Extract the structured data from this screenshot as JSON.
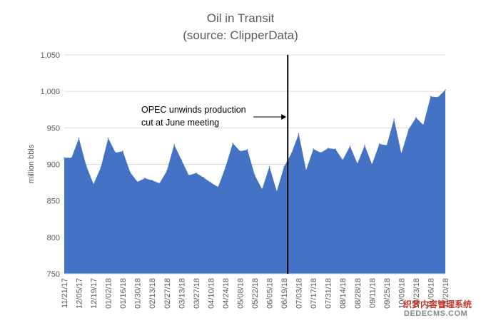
{
  "chart_data": {
    "type": "area",
    "title": "Oil in Transit",
    "subtitle": "(source: ClipperData)",
    "ylabel": "million bbls",
    "xlabel": "",
    "ylim": [
      750,
      1050
    ],
    "yticks": [
      750,
      800,
      850,
      900,
      950,
      1000,
      1050
    ],
    "grid": true,
    "legend": "none",
    "x_ticks": [
      "11/21/17",
      "12/05/17",
      "12/19/17",
      "01/02/18",
      "01/16/18",
      "01/30/18",
      "02/13/18",
      "02/27/18",
      "03/13/18",
      "03/27/18",
      "04/10/18",
      "04/24/18",
      "05/08/18",
      "05/22/18",
      "06/05/18",
      "06/19/18",
      "07/03/18",
      "07/17/18",
      "07/31/18",
      "08/14/18",
      "08/28/18",
      "09/11/18",
      "09/25/18",
      "10/09/18",
      "10/23/18",
      "11/06/18",
      "11/20/18"
    ],
    "series": [
      {
        "values": [
          909,
          909,
          936,
          898,
          873,
          896,
          936,
          916,
          918,
          889,
          876,
          881,
          878,
          874,
          891,
          927,
          906,
          885,
          888,
          882,
          875,
          869,
          896,
          929,
          918,
          920,
          885,
          866,
          897,
          863,
          897,
          915,
          942,
          892,
          921,
          916,
          922,
          921,
          906,
          925,
          901,
          926,
          900,
          928,
          926,
          962,
          915,
          948,
          964,
          954,
          993,
          992,
          1002
        ]
      }
    ],
    "vline_after_index": 30,
    "annotation": {
      "line1": "OPEC unwinds production",
      "line2": "cut at June meeting"
    },
    "colors": {
      "area": "#4472c4",
      "grid": "#d9d9d9",
      "axis_text": "#595959",
      "vline": "#000000"
    }
  },
  "watermark": {
    "line1": "织梦内容管理系统",
    "line2": "DEDECMS.COM"
  }
}
